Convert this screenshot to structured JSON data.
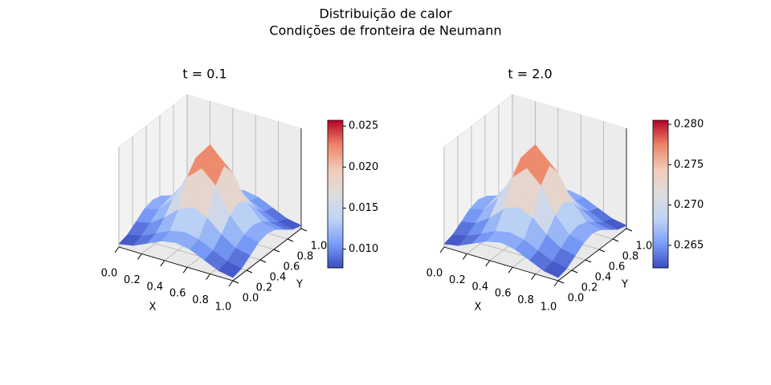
{
  "title": "Distribuição de calor",
  "subtitle": "Condições de fronteira de Neumann",
  "chart_data": [
    {
      "type": "surface",
      "title": "t = 0.1",
      "xlabel": "X",
      "ylabel": "Y",
      "x": [
        0,
        0.125,
        0.25,
        0.375,
        0.5,
        0.625,
        0.75,
        0.875,
        1
      ],
      "y": [
        0,
        0.125,
        0.25,
        0.375,
        0.5,
        0.625,
        0.75,
        0.875,
        1
      ],
      "z": [
        [
          0.0077,
          0.0082,
          0.0095,
          0.0108,
          0.0113,
          0.0108,
          0.0095,
          0.0082,
          0.0077
        ],
        [
          0.0082,
          0.0088,
          0.0101,
          0.0115,
          0.0121,
          0.0115,
          0.0101,
          0.0088,
          0.0082
        ],
        [
          0.0095,
          0.0101,
          0.012,
          0.0145,
          0.0158,
          0.0145,
          0.012,
          0.0101,
          0.0095
        ],
        [
          0.0108,
          0.0115,
          0.0145,
          0.0196,
          0.0222,
          0.0196,
          0.0145,
          0.0115,
          0.0108
        ],
        [
          0.0113,
          0.0121,
          0.0158,
          0.0222,
          0.0257,
          0.0222,
          0.0158,
          0.0121,
          0.0113
        ],
        [
          0.0108,
          0.0115,
          0.0145,
          0.0196,
          0.0222,
          0.0196,
          0.0145,
          0.0115,
          0.0108
        ],
        [
          0.0095,
          0.0101,
          0.012,
          0.0145,
          0.0158,
          0.0145,
          0.012,
          0.0101,
          0.0095
        ],
        [
          0.0082,
          0.0088,
          0.0101,
          0.0115,
          0.0121,
          0.0115,
          0.0101,
          0.0088,
          0.0082
        ],
        [
          0.0077,
          0.0082,
          0.0095,
          0.0108,
          0.0113,
          0.0108,
          0.0095,
          0.0082,
          0.0077
        ]
      ],
      "xlim": [
        0,
        1
      ],
      "ylim": [
        0,
        1
      ],
      "zlim": [
        0.0077,
        0.0257
      ],
      "xticks": [
        {
          "value": 0,
          "label": "0.0"
        },
        0.2,
        0.4,
        0.6,
        0.8,
        {
          "value": 1,
          "label": "1.0"
        }
      ],
      "yticks": [
        {
          "value": 0,
          "label": "0.0"
        },
        0.2,
        0.4,
        0.6,
        0.8,
        {
          "value": 1,
          "label": "1.0"
        }
      ],
      "colorbar_ticks": [
        {
          "value": 0.01,
          "label": "0.010"
        },
        0.015,
        {
          "value": 0.02,
          "label": "0.020"
        },
        0.025
      ],
      "colormap": [
        "#3b4cc0",
        "#7b9ff9",
        "#c0d4f5",
        "#dddddd",
        "#f2cbb7",
        "#ee8468",
        "#b40426"
      ]
    },
    {
      "type": "surface",
      "title": "t = 2.0",
      "xlabel": "X",
      "ylabel": "Y",
      "x": [
        0,
        0.125,
        0.25,
        0.375,
        0.5,
        0.625,
        0.75,
        0.875,
        1
      ],
      "y": [
        0,
        0.125,
        0.25,
        0.375,
        0.5,
        0.625,
        0.75,
        0.875,
        1
      ],
      "z": [
        [
          0.2622,
          0.2627,
          0.264,
          0.2653,
          0.2659,
          0.2653,
          0.264,
          0.2627,
          0.2622
        ],
        [
          0.2627,
          0.2633,
          0.2646,
          0.266,
          0.2666,
          0.266,
          0.2646,
          0.2633,
          0.2627
        ],
        [
          0.264,
          0.2646,
          0.2665,
          0.2692,
          0.2704,
          0.2692,
          0.2665,
          0.2646,
          0.264
        ],
        [
          0.2653,
          0.266,
          0.2692,
          0.2743,
          0.277,
          0.2743,
          0.2692,
          0.266,
          0.2653
        ],
        [
          0.2659,
          0.2666,
          0.2704,
          0.277,
          0.2805,
          0.277,
          0.2704,
          0.2666,
          0.2659
        ],
        [
          0.2653,
          0.266,
          0.2692,
          0.2743,
          0.277,
          0.2743,
          0.2692,
          0.266,
          0.2653
        ],
        [
          0.264,
          0.2646,
          0.2665,
          0.2692,
          0.2704,
          0.2692,
          0.2665,
          0.2646,
          0.264
        ],
        [
          0.2627,
          0.2633,
          0.2646,
          0.266,
          0.2666,
          0.266,
          0.2646,
          0.2633,
          0.2627
        ],
        [
          0.2622,
          0.2627,
          0.264,
          0.2653,
          0.2659,
          0.2653,
          0.264,
          0.2627,
          0.2622
        ]
      ],
      "xlim": [
        0,
        1
      ],
      "ylim": [
        0,
        1
      ],
      "zlim": [
        0.2622,
        0.2805
      ],
      "xticks": [
        {
          "value": 0,
          "label": "0.0"
        },
        0.2,
        0.4,
        0.6,
        0.8,
        {
          "value": 1,
          "label": "1.0"
        }
      ],
      "yticks": [
        {
          "value": 0,
          "label": "0.0"
        },
        0.2,
        0.4,
        0.6,
        0.8,
        {
          "value": 1,
          "label": "1.0"
        }
      ],
      "colorbar_ticks": [
        0.265,
        {
          "value": 0.27,
          "label": "0.270"
        },
        0.275,
        {
          "value": 0.28,
          "label": "0.280"
        }
      ],
      "colormap": [
        "#3b4cc0",
        "#7b9ff9",
        "#c0d4f5",
        "#dddddd",
        "#f2cbb7",
        "#ee8468",
        "#b40426"
      ]
    }
  ]
}
